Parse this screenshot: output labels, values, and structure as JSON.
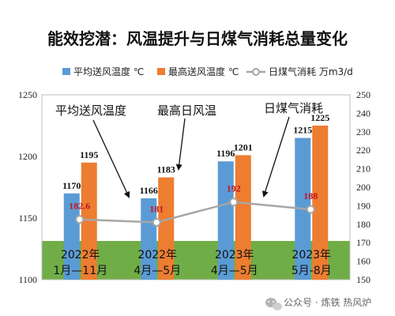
{
  "chart_data": {
    "type": "bar",
    "title": "能效挖潜：风温提升与日煤气消耗总量变化",
    "categories": [
      {
        "line1": "2022年",
        "line2": "1月—11月"
      },
      {
        "line1": "2022年",
        "line2": "4月—5月"
      },
      {
        "line1": "2023年",
        "line2": "4月—5月"
      },
      {
        "line1": "2023年",
        "line2": "5月-8月"
      }
    ],
    "series": [
      {
        "name": "平均送风温度 ℃",
        "kind": "bar",
        "axis": "left",
        "color": "#5b9bd5",
        "values": [
          1170,
          1166,
          1196,
          1215
        ]
      },
      {
        "name": "最高送风温度 ℃",
        "kind": "bar",
        "axis": "left",
        "color": "#ed7d31",
        "values": [
          1195,
          1183,
          1201,
          1225
        ]
      },
      {
        "name": "日煤气消耗 万m3/d",
        "kind": "line",
        "axis": "right",
        "color": "#a6a6a6",
        "values": [
          182.6,
          181,
          192,
          188
        ],
        "labels": [
          "182.6",
          "181",
          "192",
          "188"
        ]
      }
    ],
    "y_left": {
      "min": 1100,
      "max": 1250,
      "ticks": [
        "1100",
        "1150",
        "1200",
        "1250"
      ]
    },
    "y_right": {
      "min": 150,
      "max": 250,
      "ticks": [
        "150",
        "160",
        "170",
        "180",
        "190",
        "200",
        "210",
        "220",
        "230",
        "240",
        "250"
      ]
    },
    "annotations": [
      {
        "text": "平均送风温度"
      },
      {
        "text": "最高日风温"
      },
      {
        "text": "日煤气消耗"
      }
    ],
    "band_color": "#70ad47",
    "legend_position": "top"
  },
  "watermark": {
    "text": "公众号 · 炼铁 热风炉",
    "icon": "wechat-icon"
  }
}
